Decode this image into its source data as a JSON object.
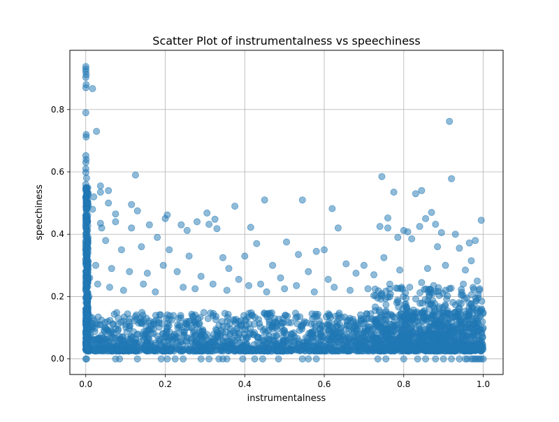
{
  "chart_data": {
    "type": "scatter",
    "title": "Scatter Plot of instrumentalness vs speechiness",
    "xlabel": "instrumentalness",
    "ylabel": "speechiness",
    "xlim": [
      -0.04,
      1.05
    ],
    "ylim": [
      -0.05,
      0.99
    ],
    "x_ticks": [
      0.0,
      0.2,
      0.4,
      0.6,
      0.8,
      1.0
    ],
    "x_tick_labels": [
      "0.0",
      "0.2",
      "0.4",
      "0.6",
      "0.8",
      "1.0"
    ],
    "y_ticks": [
      0.0,
      0.2,
      0.4,
      0.6,
      0.8
    ],
    "y_tick_labels": [
      "0.0",
      "0.2",
      "0.4",
      "0.6",
      "0.8"
    ],
    "grid": true,
    "marker_color": "#1f77b4",
    "marker_alpha": 0.5,
    "series": [
      {
        "points": [
          [
            0.0,
            0.938
          ],
          [
            0.0,
            0.93
          ],
          [
            0.0,
            0.922
          ],
          [
            0.001,
            0.912
          ],
          [
            0.0,
            0.903
          ],
          [
            0.001,
            0.88
          ],
          [
            0.0,
            0.87
          ],
          [
            0.017,
            0.867
          ],
          [
            0.0,
            0.79
          ],
          [
            0.001,
            0.72
          ],
          [
            0.001,
            0.712
          ],
          [
            0.027,
            0.73
          ],
          [
            0.0,
            0.652
          ],
          [
            0.001,
            0.64
          ],
          [
            0.0,
            0.63
          ],
          [
            0.0,
            0.61
          ],
          [
            0.0,
            0.598
          ],
          [
            0.002,
            0.58
          ],
          [
            0.0,
            0.56
          ],
          [
            0.001,
            0.54
          ],
          [
            0.0,
            0.52
          ],
          [
            0.003,
            0.5
          ],
          [
            0.002,
            0.48
          ],
          [
            0.0,
            0.46
          ],
          [
            0.004,
            0.44
          ],
          [
            0.0,
            0.42
          ],
          [
            0.001,
            0.4
          ],
          [
            0.005,
            0.38
          ],
          [
            0.0,
            0.36
          ],
          [
            0.002,
            0.34
          ],
          [
            0.0,
            0.32
          ],
          [
            0.006,
            0.3
          ],
          [
            0.001,
            0.28
          ],
          [
            0.0,
            0.26
          ],
          [
            0.003,
            0.24
          ],
          [
            0.0,
            0.22
          ],
          [
            0.008,
            0.2
          ],
          [
            0.001,
            0.18
          ],
          [
            0.0,
            0.16
          ],
          [
            0.004,
            0.14
          ],
          [
            0.0,
            0.12
          ],
          [
            0.002,
            0.1
          ],
          [
            0.0,
            0.08
          ],
          [
            0.005,
            0.06
          ],
          [
            0.001,
            0.04
          ],
          [
            0.02,
            0.52
          ],
          [
            0.017,
            0.48
          ],
          [
            0.037,
            0.555
          ],
          [
            0.037,
            0.535
          ],
          [
            0.057,
            0.54
          ],
          [
            0.057,
            0.5
          ],
          [
            0.037,
            0.435
          ],
          [
            0.04,
            0.42
          ],
          [
            0.075,
            0.465
          ],
          [
            0.075,
            0.44
          ],
          [
            0.125,
            0.59
          ],
          [
            0.115,
            0.495
          ],
          [
            0.13,
            0.475
          ],
          [
            0.115,
            0.42
          ],
          [
            0.16,
            0.43
          ],
          [
            0.2,
            0.45
          ],
          [
            0.205,
            0.462
          ],
          [
            0.24,
            0.43
          ],
          [
            0.255,
            0.412
          ],
          [
            0.28,
            0.44
          ],
          [
            0.305,
            0.468
          ],
          [
            0.31,
            0.432
          ],
          [
            0.325,
            0.448
          ],
          [
            0.33,
            0.418
          ],
          [
            0.375,
            0.49
          ],
          [
            0.45,
            0.51
          ],
          [
            0.545,
            0.51
          ],
          [
            0.62,
            0.482
          ],
          [
            0.635,
            0.42
          ],
          [
            0.415,
            0.422
          ],
          [
            0.745,
            0.585
          ],
          [
            0.92,
            0.578
          ],
          [
            0.915,
            0.762
          ],
          [
            0.775,
            0.535
          ],
          [
            0.83,
            0.53
          ],
          [
            0.845,
            0.54
          ],
          [
            0.87,
            0.47
          ],
          [
            0.855,
            0.45
          ],
          [
            0.76,
            0.452
          ],
          [
            0.74,
            0.425
          ],
          [
            0.76,
            0.42
          ],
          [
            0.995,
            0.445
          ],
          [
            0.88,
            0.432
          ],
          [
            0.84,
            0.425
          ],
          [
            0.8,
            0.412
          ],
          [
            0.81,
            0.408
          ],
          [
            0.895,
            0.405
          ],
          [
            0.93,
            0.4
          ],
          [
            0.98,
            0.38
          ],
          [
            0.965,
            0.372
          ],
          [
            0.05,
            0.38
          ],
          [
            0.09,
            0.35
          ],
          [
            0.14,
            0.36
          ],
          [
            0.18,
            0.39
          ],
          [
            0.21,
            0.35
          ],
          [
            0.26,
            0.33
          ],
          [
            0.345,
            0.325
          ],
          [
            0.4,
            0.33
          ],
          [
            0.43,
            0.37
          ],
          [
            0.47,
            0.3
          ],
          [
            0.505,
            0.375
          ],
          [
            0.535,
            0.335
          ],
          [
            0.58,
            0.345
          ],
          [
            0.6,
            0.35
          ],
          [
            0.655,
            0.305
          ],
          [
            0.7,
            0.3
          ],
          [
            0.75,
            0.325
          ],
          [
            0.785,
            0.39
          ],
          [
            0.82,
            0.385
          ],
          [
            0.885,
            0.36
          ],
          [
            0.94,
            0.355
          ],
          [
            0.97,
            0.315
          ],
          [
            0.025,
            0.3
          ],
          [
            0.065,
            0.29
          ],
          [
            0.11,
            0.28
          ],
          [
            0.155,
            0.275
          ],
          [
            0.195,
            0.3
          ],
          [
            0.23,
            0.28
          ],
          [
            0.29,
            0.265
          ],
          [
            0.36,
            0.29
          ],
          [
            0.385,
            0.255
          ],
          [
            0.44,
            0.24
          ],
          [
            0.49,
            0.26
          ],
          [
            0.56,
            0.28
          ],
          [
            0.61,
            0.255
          ],
          [
            0.68,
            0.275
          ],
          [
            0.725,
            0.27
          ],
          [
            0.79,
            0.285
          ],
          [
            0.86,
            0.29
          ],
          [
            0.905,
            0.3
          ],
          [
            0.955,
            0.285
          ],
          [
            0.985,
            0.25
          ],
          [
            0.01,
            0.26
          ],
          [
            0.03,
            0.24
          ],
          [
            0.06,
            0.23
          ],
          [
            0.095,
            0.22
          ],
          [
            0.145,
            0.24
          ],
          [
            0.175,
            0.215
          ],
          [
            0.245,
            0.23
          ],
          [
            0.275,
            0.225
          ],
          [
            0.32,
            0.24
          ],
          [
            0.355,
            0.22
          ],
          [
            0.41,
            0.235
          ],
          [
            0.455,
            0.215
          ],
          [
            0.5,
            0.225
          ],
          [
            0.53,
            0.235
          ],
          [
            0.575,
            0.215
          ],
          [
            0.625,
            0.23
          ],
          [
            0.665,
            0.22
          ],
          [
            0.71,
            0.225
          ],
          [
            0.765,
            0.24
          ],
          [
            0.815,
            0.23
          ],
          [
            0.845,
            0.245
          ],
          [
            0.875,
            0.235
          ],
          [
            0.915,
            0.225
          ],
          [
            0.95,
            0.24
          ],
          [
            0.99,
            0.22
          ],
          [
            0.0,
            0.0
          ],
          [
            0.002,
            0.0
          ],
          [
            0.075,
            0.0
          ],
          [
            0.085,
            0.0
          ],
          [
            0.13,
            0.0
          ],
          [
            0.19,
            0.0
          ],
          [
            0.205,
            0.0
          ],
          [
            0.225,
            0.0
          ],
          [
            0.245,
            0.0
          ],
          [
            0.29,
            0.0
          ],
          [
            0.31,
            0.0
          ],
          [
            0.335,
            0.0
          ],
          [
            0.345,
            0.0
          ],
          [
            0.355,
            0.0
          ],
          [
            0.395,
            0.0
          ],
          [
            0.425,
            0.0
          ],
          [
            0.445,
            0.0
          ],
          [
            0.485,
            0.0
          ],
          [
            0.545,
            0.0
          ],
          [
            0.56,
            0.0
          ],
          [
            0.58,
            0.0
          ],
          [
            0.735,
            0.0
          ],
          [
            0.755,
            0.0
          ],
          [
            0.8,
            0.0
          ],
          [
            0.835,
            0.0
          ],
          [
            0.855,
            0.0
          ],
          [
            0.88,
            0.0
          ],
          [
            0.9,
            0.0
          ],
          [
            0.92,
            0.0
          ],
          [
            0.94,
            0.0
          ],
          [
            0.955,
            0.0
          ],
          [
            0.96,
            0.0
          ],
          [
            0.97,
            0.0
          ],
          [
            0.975,
            0.0
          ],
          [
            0.98,
            0.0
          ],
          [
            0.985,
            0.0
          ],
          [
            0.99,
            0.0
          ],
          [
            0.995,
            0.0
          ],
          [
            1.0,
            0.0
          ],
          [
            0.0,
            0.15
          ],
          [
            0.0,
            0.11
          ],
          [
            0.0,
            0.05
          ],
          [
            0.0,
            0.03
          ],
          [
            0.001,
            0.07
          ],
          [
            1.0,
            0.1
          ],
          [
            0.998,
            0.07
          ],
          [
            0.995,
            0.16
          ],
          [
            0.99,
            0.05
          ],
          [
            0.999,
            0.03
          ],
          [
            0.985,
            0.12
          ],
          [
            0.975,
            0.09
          ],
          [
            0.965,
            0.14
          ],
          [
            0.95,
            0.06
          ],
          [
            0.935,
            0.11
          ]
        ],
        "dense_band": {
          "x_range": [
            0.0,
            1.0
          ],
          "y_range": [
            0.025,
            0.15
          ],
          "description_points_per_unit": 1800
        }
      }
    ]
  }
}
